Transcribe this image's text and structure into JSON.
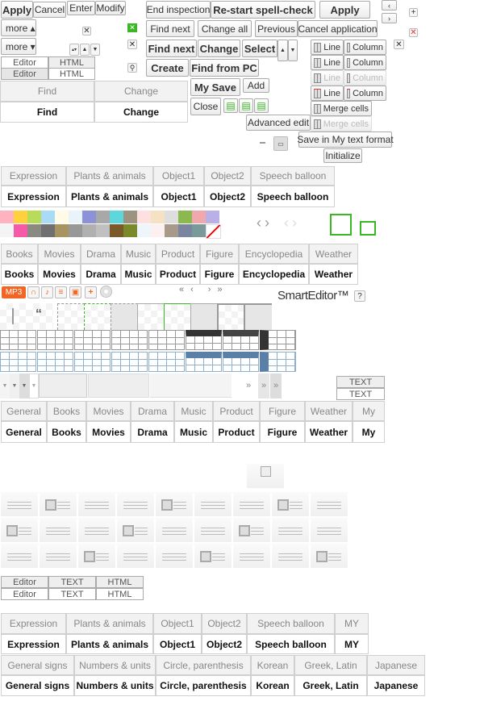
{
  "top_left": {
    "apply": "Apply",
    "cancel": "Cancel",
    "enter": "Enter",
    "modify": "Modify",
    "more_up": "more ▴",
    "more_down": "more ▾",
    "editor": "Editor",
    "html": "HTML"
  },
  "find_tabs": [
    "Find",
    "Change"
  ],
  "spell": {
    "end_inspection": "End inspection",
    "restart": "Re-start spell-check",
    "apply": "Apply",
    "find_next": "Find next",
    "change_all": "Change all",
    "previous": "Previous",
    "cancel_application": "Cancel application",
    "find_next_bold": "Find next",
    "change": "Change",
    "select": "Select",
    "create": "Create",
    "find_from_pc": "Find from PC",
    "my_save": "My Save",
    "add": "Add",
    "close": "Close",
    "advanced_edit": "Advanced edit",
    "save_my_text": "Save in My text format",
    "initialize": "Initialize"
  },
  "table_edit": {
    "line": "Line",
    "column": "Column",
    "merge_cells": "Merge cells"
  },
  "sticker_tabs": [
    "Expression",
    "Plants & animals",
    "Object1",
    "Object2",
    "Speech balloon"
  ],
  "swatches_row1": [
    "#ffb3c1",
    "#ffd23c",
    "#b8dc5a",
    "#aadaf6",
    "#fffbe6",
    "#e8f4fa",
    "#8b93d6",
    "#a8a8a8",
    "#5dd6dc",
    "#9c9480",
    "#ffe0e0",
    "#f5e2c4",
    "#dedede",
    "#8cb850",
    "#f0a8ac",
    "#b8b0e6"
  ],
  "swatches_row2": [
    "#f4f4f4",
    "#f55aa8",
    "#8a8a80",
    "#707070",
    "#a89460",
    "#989898",
    "#b0b0b0",
    "#c0c0c0",
    "#7a5a2a",
    "#7a8a2a",
    "#eef6fc",
    "#fdf0f0",
    "#a89a8a",
    "#7a86a0",
    "#7a9a9a",
    "#ffffff"
  ],
  "accent_green": "#39b824",
  "category_tabs": [
    "Books",
    "Movies",
    "Drama",
    "Music",
    "Product",
    "Figure",
    "Encyclopedia",
    "Weather"
  ],
  "media": {
    "mp3": "MP3",
    "brand": "SmartEditor™",
    "help": "?",
    "accent": "#f26522"
  },
  "pager": [
    "«",
    "‹",
    "›",
    "»"
  ],
  "text_labels": [
    "TEXT",
    "TEXT"
  ],
  "more_arrows": "»",
  "template_tabs": [
    "General",
    "Books",
    "Movies",
    "Drama",
    "Music",
    "Product",
    "Figure",
    "Weather",
    "My"
  ],
  "mode_tabs": [
    "Editor",
    "TEXT",
    "HTML"
  ],
  "emoticon_tabs": [
    "Expression",
    "Plants & animals",
    "Object1",
    "Object2",
    "Speech balloon",
    "MY"
  ],
  "symbol_tabs": [
    "General signs",
    "Numbers & units",
    "Circle, parenthesis",
    "Korean",
    "Greek, Latin",
    "Japanese"
  ]
}
